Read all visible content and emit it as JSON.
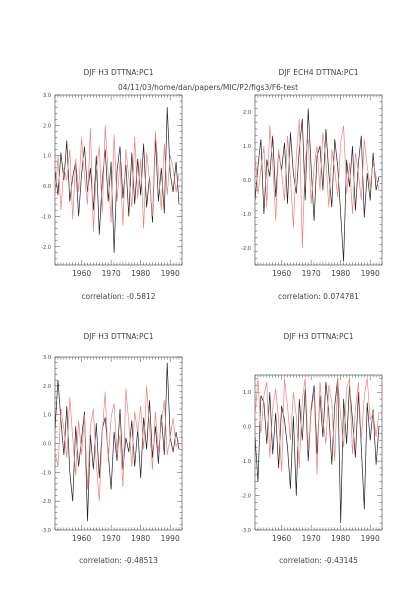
{
  "page": {
    "header": "04/11/03/home/dan/papers/MIC/P2/figs3/F6-test"
  },
  "colors": {
    "series_black": "#222222",
    "series_red": "#f08080",
    "axis": "#444444",
    "text": "#444444"
  },
  "chart_data": [
    {
      "type": "line",
      "title": "DJF H3 DTTNA:PC1",
      "caption": "correlation: -0.5812",
      "xlim": [
        1951,
        1994
      ],
      "ylim": [
        -2.6,
        3.0
      ],
      "xticks": [
        1960,
        1970,
        1980,
        1990
      ],
      "xtick_labels": [
        "1960",
        "1970",
        "1980",
        "1990"
      ],
      "yticks": [
        -2.0,
        -1.0,
        0.0,
        1.0,
        2.0,
        3.0
      ],
      "ytick_labels": [
        "-2.0",
        "-1.0",
        "0.0",
        "1.0",
        "2.0",
        "3.0"
      ],
      "x": [
        1951,
        1952,
        1953,
        1954,
        1955,
        1956,
        1957,
        1958,
        1959,
        1960,
        1961,
        1962,
        1963,
        1964,
        1965,
        1966,
        1967,
        1968,
        1969,
        1970,
        1971,
        1972,
        1973,
        1974,
        1975,
        1976,
        1977,
        1978,
        1979,
        1980,
        1981,
        1982,
        1983,
        1984,
        1985,
        1986,
        1987,
        1988,
        1989,
        1990,
        1991,
        1992,
        1993
      ],
      "series": [
        {
          "color": "#222222",
          "values": [
            0.5,
            -0.3,
            1.1,
            0.2,
            1.5,
            -0.5,
            0.3,
            0.8,
            -1.0,
            0.4,
            1.3,
            -0.2,
            0.6,
            -0.8,
            1.0,
            -1.6,
            0.2,
            1.2,
            -0.5,
            0.8,
            -2.2,
            0.5,
            1.3,
            -0.4,
            0.7,
            -1.0,
            1.1,
            -0.6,
            0.9,
            -0.3,
            1.4,
            -0.7,
            0.3,
            -1.2,
            1.6,
            -0.5,
            0.6,
            -0.9,
            2.6,
            0.4,
            -0.2,
            0.8,
            -0.6
          ]
        },
        {
          "color": "#f08080",
          "values": [
            -0.4,
            1.0,
            -0.8,
            0.6,
            0.2,
            1.2,
            -1.1,
            0.9,
            -0.2,
            1.6,
            0.3,
            -0.6,
            1.9,
            -1.5,
            0.5,
            1.3,
            -0.9,
            2.0,
            0.4,
            -1.2,
            1.7,
            -0.5,
            0.8,
            -1.3,
            1.2,
            0.3,
            -0.7,
            1.6,
            -0.4,
            0.9,
            -1.4,
            1.1,
            0.2,
            -1.0,
            1.8,
            0.5,
            -0.8,
            1.4,
            -0.3,
            1.0,
            0.6,
            -0.2,
            0.4
          ]
        }
      ]
    },
    {
      "type": "line",
      "title": "DJF ECH4 DTTNA:PC1",
      "caption": "correlation: 0.074781",
      "xlim": [
        1951,
        1994
      ],
      "ylim": [
        -2.5,
        2.5
      ],
      "xticks": [
        1960,
        1970,
        1980,
        1990
      ],
      "xtick_labels": [
        "1960",
        "1970",
        "1980",
        "1990"
      ],
      "yticks": [
        -2.0,
        -1.0,
        0.0,
        1.0,
        2.0
      ],
      "ytick_labels": [
        "-2.0",
        "-1.0",
        "0.0",
        "1.0",
        "2.0"
      ],
      "x": [
        1951,
        1952,
        1953,
        1954,
        1955,
        1956,
        1957,
        1958,
        1959,
        1960,
        1961,
        1962,
        1963,
        1964,
        1965,
        1966,
        1967,
        1968,
        1969,
        1970,
        1971,
        1972,
        1973,
        1974,
        1975,
        1976,
        1977,
        1978,
        1979,
        1980,
        1981,
        1982,
        1983,
        1984,
        1985,
        1986,
        1987,
        1988,
        1989,
        1990,
        1991,
        1992,
        1993
      ],
      "series": [
        {
          "color": "#222222",
          "values": [
            -0.6,
            0.4,
            1.2,
            -1.0,
            0.6,
            0.1,
            1.3,
            -0.5,
            0.8,
            0.3,
            1.1,
            -0.7,
            1.4,
            0.2,
            -0.4,
            0.9,
            1.8,
            -0.6,
            2.1,
            0.4,
            -1.2,
            0.7,
            1.0,
            -0.3,
            1.5,
            0.2,
            -0.8,
            1.2,
            0.4,
            -1.0,
            -2.4,
            0.6,
            -0.2,
            1.0,
            -0.9,
            0.5,
            1.3,
            -1.1,
            0.2,
            -0.6,
            0.8,
            -0.3,
            0.1
          ]
        },
        {
          "color": "#f08080",
          "values": [
            0.8,
            -0.4,
            0.3,
            1.0,
            -0.8,
            1.6,
            0.5,
            -1.2,
            0.9,
            0.2,
            -0.6,
            1.3,
            0.1,
            -1.4,
            0.7,
            1.8,
            -2.0,
            0.6,
            1.2,
            -0.7,
            0.4,
            1.0,
            -0.3,
            1.4,
            0.6,
            -0.8,
            0.9,
            0.3,
            -0.5,
            1.1,
            1.6,
            -0.4,
            0.5,
            -1.0,
            0.8,
            0.2,
            -0.6,
            1.2,
            0.4,
            -0.2,
            0.5,
            0.1,
            -0.3
          ]
        }
      ]
    },
    {
      "type": "line",
      "title": "DJF H3 DTTNA:PC1",
      "caption": "correlation: -0.48513",
      "xlim": [
        1951,
        1994
      ],
      "ylim": [
        -3.0,
        3.0
      ],
      "xticks": [
        1960,
        1970,
        1980,
        1990
      ],
      "xtick_labels": [
        "1960",
        "1970",
        "1980",
        "1990"
      ],
      "yticks": [
        -3.0,
        -2.0,
        -1.0,
        0.0,
        1.0,
        2.0,
        3.0
      ],
      "ytick_labels": [
        "-3.0",
        "-2.0",
        "-1.0",
        "0.0",
        "1.0",
        "2.0",
        "3.0"
      ],
      "x": [
        1951,
        1952,
        1953,
        1954,
        1955,
        1956,
        1957,
        1958,
        1959,
        1960,
        1961,
        1962,
        1963,
        1964,
        1965,
        1966,
        1967,
        1968,
        1969,
        1970,
        1971,
        1972,
        1973,
        1974,
        1975,
        1976,
        1977,
        1978,
        1979,
        1980,
        1981,
        1982,
        1983,
        1984,
        1985,
        1986,
        1987,
        1988,
        1989,
        1990,
        1991,
        1992,
        1993
      ],
      "series": [
        {
          "color": "#222222",
          "values": [
            0.5,
            2.2,
            0.8,
            -0.4,
            1.3,
            -1.0,
            -2.0,
            0.6,
            -0.8,
            0.2,
            1.1,
            -2.7,
            0.3,
            -0.9,
            0.7,
            -1.2,
            0.5,
            0.9,
            -0.3,
            -1.6,
            0.4,
            -0.6,
            1.2,
            -0.9,
            0.2,
            -0.3,
            0.8,
            -0.8,
            0.5,
            -1.2,
            0.9,
            -0.2,
            1.5,
            -0.5,
            0.6,
            -0.7,
            1.0,
            -0.4,
            2.8,
            0.2,
            -0.3,
            0.4,
            -0.2
          ]
        },
        {
          "color": "#f08080",
          "values": [
            -0.3,
            -0.8,
            1.2,
            0.5,
            -0.5,
            1.6,
            0.2,
            -1.1,
            0.8,
            -0.4,
            1.0,
            -1.6,
            0.6,
            1.2,
            -0.7,
            -2.0,
            0.4,
            1.8,
            -0.6,
            0.9,
            1.4,
            -0.4,
            0.3,
            -1.5,
            1.9,
            0.7,
            -0.8,
            1.1,
            0.4,
            1.3,
            -0.2,
            2.0,
            0.6,
            -0.9,
            1.1,
            -0.3,
            0.7,
            1.5,
            -0.4,
            0.2,
            0.9,
            -0.1,
            0.1
          ]
        }
      ]
    },
    {
      "type": "line",
      "title": "DJF H3 DTTNA:PC1",
      "caption": "correlation: -0.43145",
      "xlim": [
        1951,
        1994
      ],
      "ylim": [
        -3.0,
        1.5
      ],
      "xticks": [
        1960,
        1970,
        1980,
        1990
      ],
      "xtick_labels": [
        "1960",
        "1970",
        "1980",
        "1990"
      ],
      "yticks": [
        -3.0,
        -2.0,
        -1.0,
        0.0,
        1.0
      ],
      "ytick_labels": [
        "-3.0",
        "-2.0",
        "-1.0",
        "0.0",
        "1.0"
      ],
      "x": [
        1951,
        1952,
        1953,
        1954,
        1955,
        1956,
        1957,
        1958,
        1959,
        1960,
        1961,
        1962,
        1963,
        1964,
        1965,
        1966,
        1967,
        1968,
        1969,
        1970,
        1971,
        1972,
        1973,
        1974,
        1975,
        1976,
        1977,
        1978,
        1979,
        1980,
        1981,
        1982,
        1983,
        1984,
        1985,
        1986,
        1987,
        1988,
        1989,
        1990,
        1991,
        1992,
        1993
      ],
      "series": [
        {
          "color": "#222222",
          "values": [
            -0.3,
            -1.6,
            0.9,
            0.7,
            -0.5,
            1.0,
            -0.8,
            0.4,
            -1.2,
            0.6,
            0.2,
            -0.6,
            -1.8,
            0.3,
            -2.0,
            0.8,
            -0.4,
            1.1,
            -1.0,
            0.5,
            1.2,
            -0.8,
            0.9,
            -0.3,
            1.3,
            0.4,
            -1.1,
            0.6,
            1.4,
            -2.8,
            0.8,
            -0.5,
            1.2,
            0.2,
            -0.9,
            1.0,
            -0.6,
            -2.4,
            0.7,
            -0.4,
            0.5,
            -1.1,
            0.0
          ]
        },
        {
          "color": "#f08080",
          "values": [
            0.3,
            1.4,
            -0.2,
            0.9,
            1.3,
            -0.9,
            0.5,
            1.1,
            0.2,
            -1.3,
            1.4,
            0.6,
            -0.4,
            1.0,
            0.3,
            -1.2,
            0.8,
            1.4,
            -0.7,
            0.4,
            1.0,
            -1.4,
            1.3,
            0.2,
            -0.5,
            1.2,
            0.7,
            -1.0,
            1.4,
            0.3,
            -0.6,
            1.1,
            1.4,
            -0.8,
            0.5,
            1.3,
            -0.4,
            0.9,
            1.4,
            0.2,
            0.4,
            -0.3,
            0.4
          ]
        }
      ]
    }
  ]
}
